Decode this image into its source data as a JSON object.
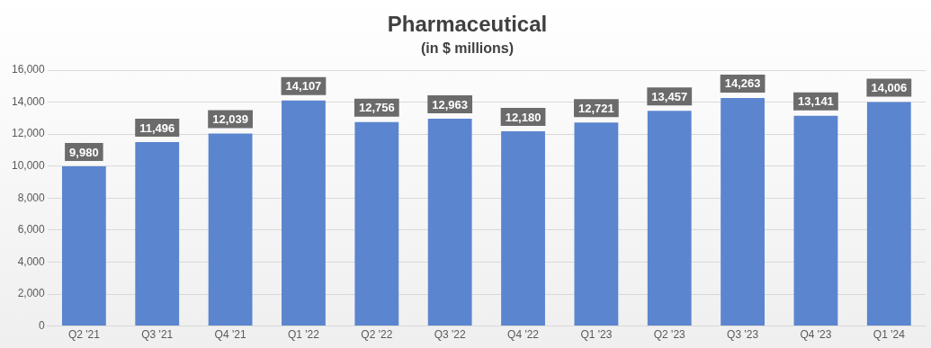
{
  "chart_data": {
    "type": "bar",
    "title": "Pharmaceutical",
    "subtitle": "(in $ millions)",
    "categories": [
      "Q2 '21",
      "Q3 '21",
      "Q4 '21",
      "Q1 '22",
      "Q2 '22",
      "Q3 '22",
      "Q4 '22",
      "Q1 '23",
      "Q2 '23",
      "Q3 '23",
      "Q4 '23",
      "Q1 '24"
    ],
    "values": [
      9980,
      11496,
      12039,
      14107,
      12756,
      12963,
      12180,
      12721,
      13457,
      14263,
      13141,
      14006
    ],
    "value_labels": [
      "9,980",
      "11,496",
      "12,039",
      "14,107",
      "12,756",
      "12,963",
      "12,180",
      "12,721",
      "13,457",
      "14,263",
      "13,141",
      "14,006"
    ],
    "color": "#5b85cf",
    "ylim": [
      0,
      16000
    ],
    "yticks": [
      0,
      {
        "value": 2000,
        "label": "2,000"
      },
      {
        "value": 4000,
        "label": "4,000"
      },
      {
        "value": 6000,
        "label": "6,000"
      },
      {
        "value": 8000,
        "label": "8,000"
      },
      {
        "value": 10000,
        "label": "10,000"
      },
      {
        "value": 12000,
        "label": "12,000"
      },
      {
        "value": 14000,
        "label": "14,000"
      },
      {
        "value": 16000,
        "label": "16,000"
      }
    ],
    "grid": "y",
    "legend": false
  }
}
